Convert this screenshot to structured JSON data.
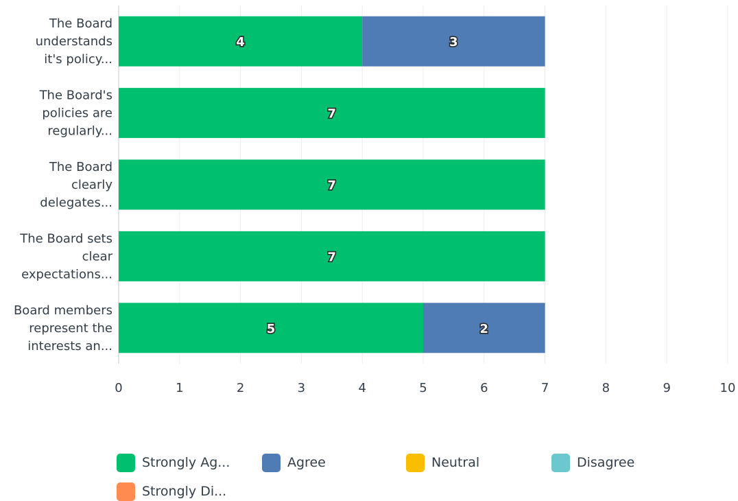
{
  "chart_data": {
    "type": "bar",
    "orientation": "horizontal",
    "stacked": true,
    "categories": [
      [
        "The Board",
        "understands",
        "it's policy..."
      ],
      [
        "The Board's",
        "policies are",
        "regularly..."
      ],
      [
        "The Board",
        "clearly",
        "delegates..."
      ],
      [
        "The Board sets",
        "clear",
        "expectations..."
      ],
      [
        "Board members",
        "represent the",
        "interests an..."
      ]
    ],
    "series": [
      {
        "name": "Strongly Ag...",
        "color": "#00bf6f",
        "values": [
          4,
          7,
          7,
          7,
          5
        ]
      },
      {
        "name": "Agree",
        "color": "#507cb6",
        "values": [
          3,
          0,
          0,
          0,
          2
        ]
      },
      {
        "name": "Neutral",
        "color": "#f9be00",
        "values": [
          0,
          0,
          0,
          0,
          0
        ]
      },
      {
        "name": "Disagree",
        "color": "#6bc8cd",
        "values": [
          0,
          0,
          0,
          0,
          0
        ]
      },
      {
        "name": "Strongly Di...",
        "color": "#ff8b4f",
        "values": [
          0,
          0,
          0,
          0,
          0
        ]
      }
    ],
    "xlim": [
      0,
      10
    ],
    "xticks": [
      "0",
      "1",
      "2",
      "3",
      "4",
      "5",
      "6",
      "7",
      "8",
      "9",
      "10"
    ],
    "grid": true,
    "legend_position": "bottom"
  }
}
